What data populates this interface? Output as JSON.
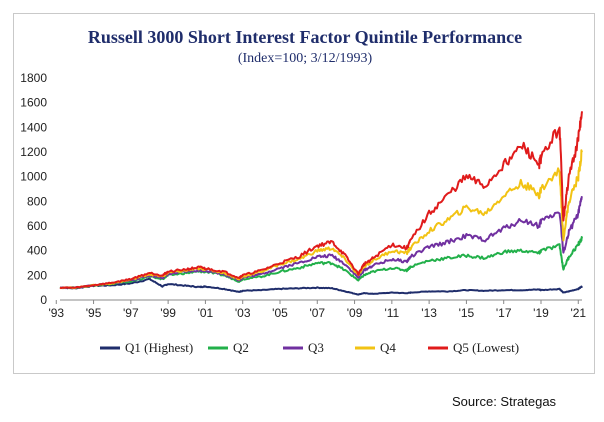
{
  "chart_data": {
    "type": "line",
    "title": "Russell 3000 Short Interest Factor Quintile Performance",
    "subtitle": "(Index=100; 3/12/1993)",
    "xlabel": "",
    "ylabel": "",
    "xlim": [
      1993.2,
      2021.2
    ],
    "ylim": [
      0,
      1800
    ],
    "yticks": [
      0,
      200,
      400,
      600,
      800,
      1000,
      1200,
      1400,
      1600,
      1800
    ],
    "xticks": [
      "'93",
      "'95",
      "'97",
      "'99",
      "'01",
      "'03",
      "'05",
      "'07",
      "'09",
      "'11",
      "'13",
      "'15",
      "'17",
      "'19",
      "'21"
    ],
    "xtick_years": [
      1993,
      1995,
      1997,
      1999,
      2001,
      2003,
      2005,
      2007,
      2009,
      2011,
      2013,
      2015,
      2017,
      2019,
      2021
    ],
    "grid": false,
    "legend_position": "bottom",
    "x": [
      1993.2,
      1994,
      1995,
      1996,
      1997,
      1998,
      1998.7,
      1999,
      2000,
      2000.7,
      2001,
      2002,
      2002.8,
      2003,
      2004,
      2005,
      2006,
      2007,
      2007.8,
      2008.5,
      2009.2,
      2009.5,
      2010,
      2011,
      2011.8,
      2012,
      2013,
      2014,
      2015,
      2016,
      2017,
      2018,
      2018.9,
      2019,
      2020,
      2020.2,
      2020.5,
      2021,
      2021.2
    ],
    "series": [
      {
        "name": "Q1 (Highest)",
        "color": "#1f2d6b",
        "values": [
          100,
          95,
          115,
          120,
          135,
          170,
          110,
          130,
          115,
          105,
          110,
          90,
          65,
          75,
          80,
          90,
          95,
          100,
          95,
          70,
          45,
          55,
          50,
          60,
          55,
          60,
          70,
          70,
          80,
          75,
          80,
          80,
          85,
          80,
          90,
          60,
          70,
          90,
          110
        ]
      },
      {
        "name": "Q2",
        "color": "#22b04a",
        "values": [
          100,
          100,
          120,
          130,
          150,
          190,
          170,
          200,
          220,
          230,
          230,
          200,
          150,
          170,
          190,
          230,
          260,
          300,
          300,
          240,
          160,
          200,
          230,
          260,
          240,
          270,
          320,
          340,
          360,
          340,
          390,
          400,
          380,
          400,
          440,
          250,
          350,
          450,
          500
        ]
      },
      {
        "name": "Q3",
        "color": "#7030a0",
        "values": [
          100,
          100,
          120,
          135,
          160,
          200,
          180,
          210,
          230,
          240,
          240,
          210,
          160,
          180,
          210,
          260,
          300,
          350,
          360,
          290,
          180,
          240,
          280,
          330,
          310,
          350,
          430,
          470,
          520,
          490,
          580,
          650,
          600,
          640,
          720,
          380,
          550,
          700,
          830
        ]
      },
      {
        "name": "Q4",
        "color": "#f2c314",
        "values": [
          100,
          100,
          120,
          135,
          165,
          210,
          190,
          220,
          240,
          255,
          250,
          220,
          170,
          190,
          230,
          290,
          330,
          400,
          420,
          330,
          200,
          270,
          320,
          400,
          380,
          420,
          560,
          650,
          750,
          700,
          850,
          950,
          850,
          900,
          1050,
          500,
          800,
          1000,
          1210
        ]
      },
      {
        "name": "Q5 (Lowest)",
        "color": "#e01b1b",
        "values": [
          100,
          100,
          120,
          140,
          170,
          220,
          200,
          230,
          250,
          265,
          255,
          230,
          180,
          200,
          240,
          300,
          350,
          440,
          470,
          360,
          210,
          290,
          340,
          450,
          420,
          480,
          700,
          850,
          1000,
          920,
          1100,
          1250,
          1100,
          1150,
          1400,
          650,
          1000,
          1300,
          1530
        ]
      }
    ]
  },
  "source": "Source: Strategas"
}
